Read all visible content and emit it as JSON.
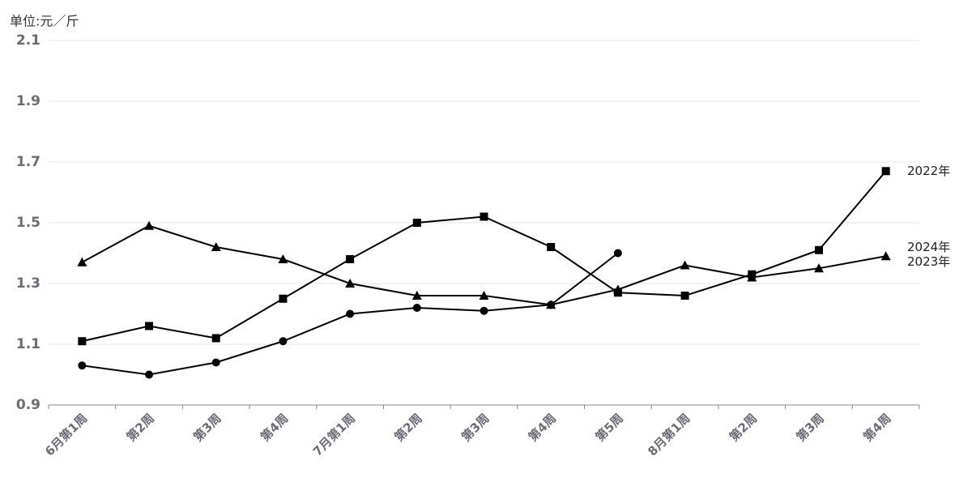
{
  "chart_data": {
    "type": "line",
    "y_label": "单位:元／斤",
    "categories": [
      "6月第1周",
      "第2周",
      "第3周",
      "第4周",
      "7月第1周",
      "第2周",
      "第3周",
      "第4周",
      "第5周",
      "8月第1周",
      "第2周",
      "第3周",
      "第4周"
    ],
    "series": [
      {
        "name": "2022年",
        "color": "#000000",
        "marker": "square",
        "values": [
          1.11,
          1.16,
          1.12,
          1.25,
          1.38,
          1.5,
          1.52,
          1.42,
          1.27,
          1.26,
          1.33,
          1.41,
          1.67
        ]
      },
      {
        "name": "2023年",
        "color": "#000000",
        "marker": "triangle",
        "values": [
          1.37,
          1.49,
          1.42,
          1.38,
          1.3,
          1.26,
          1.26,
          1.23,
          1.28,
          1.36,
          1.32,
          1.35,
          1.39
        ]
      },
      {
        "name": "2024年",
        "color": "#000000",
        "marker": "circle",
        "values": [
          1.03,
          1.0,
          1.04,
          1.11,
          1.2,
          1.22,
          1.21,
          1.23,
          1.4,
          null,
          null,
          null,
          null
        ]
      }
    ],
    "ylim": [
      0.9,
      2.1
    ],
    "yticks": [
      0.9,
      1.1,
      1.3,
      1.5,
      1.7,
      1.9,
      2.1
    ],
    "grid": true
  }
}
